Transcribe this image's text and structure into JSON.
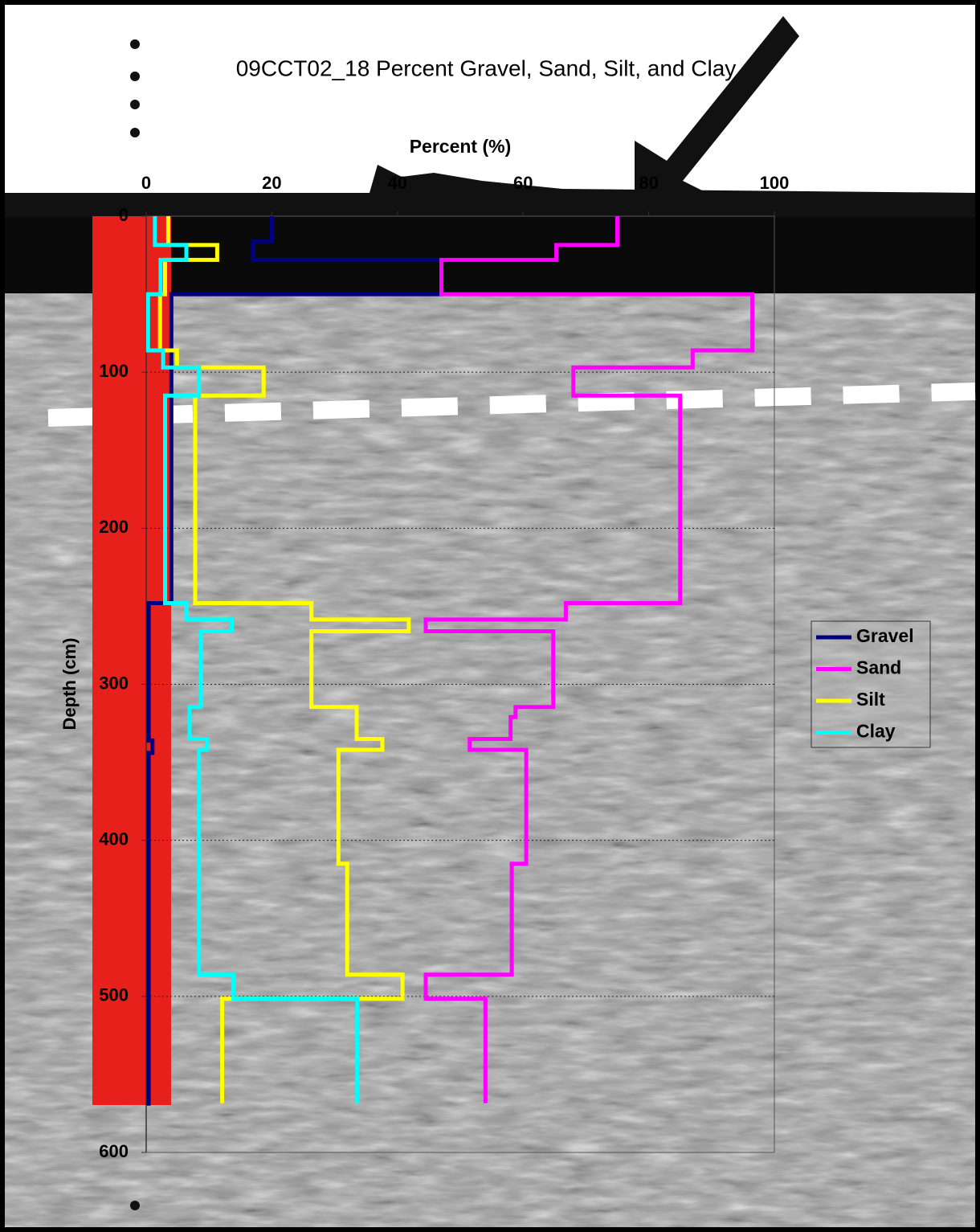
{
  "chart_data": {
    "type": "line",
    "title": "09CCT02_18 Percent Gravel, Sand, Silt, and Clay",
    "x_label": "Percent (%)",
    "y_label": "Depth (cm)",
    "xlim": [
      0,
      100
    ],
    "xticks": [
      0,
      20,
      40,
      60,
      80,
      100
    ],
    "ylim": [
      0,
      600
    ],
    "yticks": [
      0,
      100,
      200,
      300,
      400,
      500,
      600
    ],
    "grid": true,
    "legend": "right",
    "series": [
      {
        "name": "Gravel",
        "color": "#000080",
        "values": [
          20,
          20,
          17,
          17,
          47,
          47,
          4,
          4,
          0.4,
          0.4,
          1,
          1,
          0.4,
          0.4
        ],
        "depth": [
          0,
          16,
          16,
          28,
          28,
          50,
          50,
          248,
          248,
          336,
          336,
          344,
          344,
          570
        ]
      },
      {
        "name": "Sand",
        "color": "#ff00ff",
        "values": [
          75,
          75,
          65.3,
          65.3,
          47,
          47,
          96.5,
          96.5,
          87,
          87,
          68,
          68,
          85,
          85,
          66.8,
          66.8,
          44.5,
          44.5,
          64.8,
          64.8,
          58.8,
          58.8,
          58,
          58,
          51.5,
          51.5,
          60.5,
          60.5,
          58.2,
          58.2,
          44.5,
          44.5,
          54,
          54
        ],
        "depth": [
          0,
          18.5,
          18.5,
          28,
          28,
          50,
          50,
          86,
          86,
          97,
          97,
          115,
          115,
          248,
          248,
          258.5,
          258.5,
          266,
          266,
          314.6,
          314.6,
          321,
          321,
          335,
          335,
          342,
          342,
          415,
          415,
          486,
          486,
          501.5,
          501.5,
          568.5
        ]
      },
      {
        "name": "Silt",
        "color": "#ffff00",
        "values": [
          3.5,
          3.5,
          11.3,
          11.3,
          3,
          3,
          2.2,
          2.2,
          4.9,
          4.9,
          18.7,
          18.7,
          7.8,
          7.8,
          26.3,
          26.3,
          41.8,
          41.8,
          26.3,
          26.3,
          33.5,
          33.5,
          37.6,
          37.6,
          30.6,
          30.6,
          32,
          32,
          40.8,
          40.8,
          12.1,
          12.1
        ],
        "depth": [
          0,
          18.5,
          18.5,
          28,
          28,
          50,
          50,
          86,
          86,
          97,
          97,
          115,
          115,
          248,
          248,
          258.5,
          258.5,
          266,
          266,
          314.6,
          314.6,
          335,
          335,
          342,
          342,
          415,
          415,
          486,
          486,
          501.5,
          501.5,
          568.5
        ]
      },
      {
        "name": "Clay",
        "color": "#00ffff",
        "values": [
          1.4,
          1.4,
          6.4,
          6.4,
          2.3,
          2.3,
          0.3,
          0.3,
          2.7,
          2.7,
          8.4,
          8.4,
          3,
          3,
          6.4,
          6.4,
          13.6,
          13.6,
          8.7,
          8.7,
          6.9,
          6.9,
          9.7,
          9.7,
          8.4,
          8.4,
          13.9,
          13.9,
          33.6,
          33.6
        ],
        "depth": [
          0,
          18.5,
          18.5,
          28,
          28,
          50,
          50,
          86,
          86,
          97,
          97,
          115,
          115,
          248,
          248,
          258.5,
          258.5,
          266,
          266,
          314.6,
          314.6,
          335,
          335,
          342,
          342,
          486,
          486,
          501.5,
          501.5,
          568.5
        ]
      }
    ]
  }
}
